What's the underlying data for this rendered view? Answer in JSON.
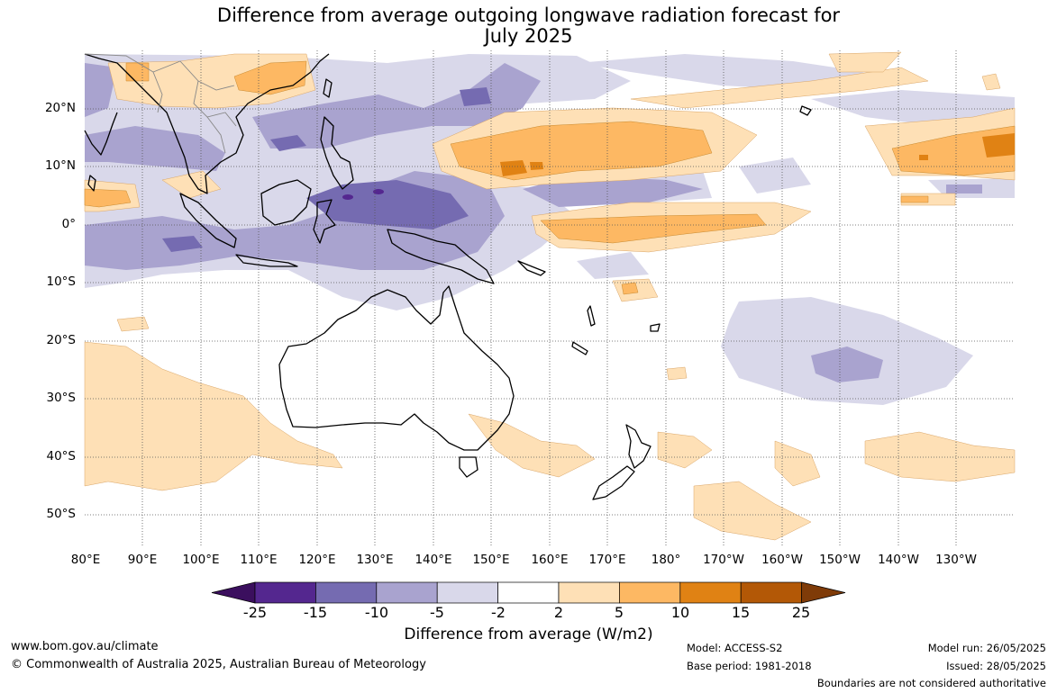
{
  "title": {
    "line1": "Difference from average outgoing longwave radiation forecast for",
    "line2": "July 2025"
  },
  "map": {
    "lat_labels": [
      "20°N",
      "10°N",
      "0°",
      "10°S",
      "20°S",
      "30°S",
      "40°S",
      "50°S"
    ],
    "lon_labels": [
      "80°E",
      "90°E",
      "100°E",
      "110°E",
      "120°E",
      "130°E",
      "140°E",
      "150°E",
      "160°E",
      "170°E",
      "180°",
      "170°W",
      "160°W",
      "150°W",
      "140°W",
      "130°W"
    ]
  },
  "colorbar": {
    "ticks": [
      "-25",
      "-15",
      "-10",
      "-5",
      "-2",
      "2",
      "5",
      "10",
      "15",
      "25"
    ],
    "colors": [
      "#3b0f5e",
      "#54278f",
      "#756bb1",
      "#a9a3cf",
      "#d9d8ea",
      "#ffffff",
      "#fee0b6",
      "#fdb863",
      "#e08214",
      "#b35806",
      "#7f3b08"
    ],
    "label": "Difference from average (W/m2)"
  },
  "footer": {
    "website": "www.bom.gov.au/climate",
    "copyright": "© Commonwealth of Australia 2025, Australian Bureau of Meteorology",
    "model": "Model: ACCESS-S2",
    "base_period": "Base period: 1981-2018",
    "model_run": "Model run: 26/05/2025",
    "issued": "Issued: 28/05/2025",
    "disclaimer": "Boundaries are not considered authoritative"
  }
}
